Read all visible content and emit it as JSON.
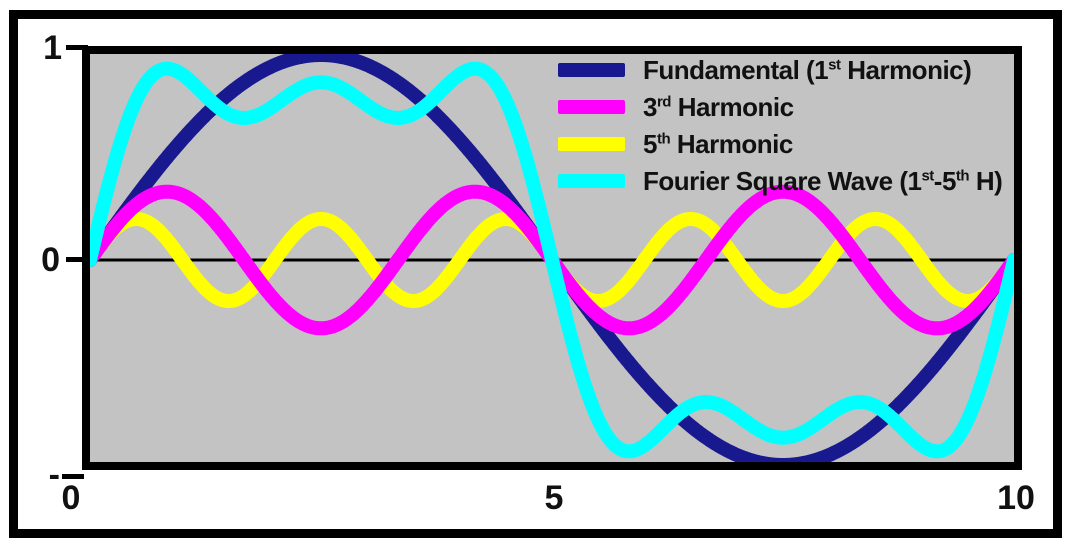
{
  "figure": {
    "background_color": "#ffffff",
    "plot_background_color": "#c3c3c3",
    "frame_color": "#000000",
    "zero_line_color": "#000000"
  },
  "axes": {
    "y_ticks": [
      {
        "label": "1",
        "value": 1
      },
      {
        "label": "0",
        "value": 0
      },
      {
        "label": "-",
        "value": -1
      }
    ],
    "x_ticks": [
      {
        "label": "0",
        "value": 0
      },
      {
        "label": "5",
        "value": 5
      },
      {
        "label": "10",
        "value": 10
      }
    ]
  },
  "legend": {
    "items": [
      {
        "id": "fundamental",
        "swatch_color": "#18188f",
        "parts": [
          {
            "t": "Fundamental (1"
          },
          {
            "t": "st",
            "sup": true
          },
          {
            "t": " Harmonic)"
          }
        ]
      },
      {
        "id": "harmonic-3",
        "swatch_color": "#ff00ff",
        "parts": [
          {
            "t": "3"
          },
          {
            "t": "rd",
            "sup": true
          },
          {
            "t": " Harmonic"
          }
        ]
      },
      {
        "id": "harmonic-5",
        "swatch_color": "#ffff00",
        "parts": [
          {
            "t": "5"
          },
          {
            "t": "th",
            "sup": true
          },
          {
            "t": " Harmonic"
          }
        ]
      },
      {
        "id": "square-wave-sum",
        "swatch_color": "#00ffff",
        "parts": [
          {
            "t": "Fourier Square Wave (1"
          },
          {
            "t": "st",
            "sup": true
          },
          {
            "t": "-5"
          },
          {
            "t": "th",
            "sup": true
          },
          {
            "t": " H)"
          }
        ]
      }
    ]
  },
  "chart_data": {
    "type": "line",
    "title": "",
    "xlabel": "",
    "ylabel": "",
    "x_range": [
      0,
      10
    ],
    "ylim": [
      -1,
      1
    ],
    "xtick_values": [
      0,
      5,
      10
    ],
    "xtick_labels": [
      "0",
      "5",
      "10"
    ],
    "ytick_values": [
      1,
      0,
      -1
    ],
    "ytick_labels": [
      "1",
      "0",
      "-"
    ],
    "grid": false,
    "zero_line": true,
    "legend_position": "top-right-inside",
    "period": 10,
    "model": "y(x) = sum over components of amplitude * sin(2*pi*harmonic*x/period)",
    "series": [
      {
        "id": "fundamental",
        "name": "Fundamental (1st Harmonic)",
        "color": "#18188f",
        "z": 2,
        "components": [
          {
            "harmonic": 1,
            "amplitude": 1.0
          }
        ]
      },
      {
        "id": "harmonic-3",
        "name": "3rd Harmonic",
        "color": "#ff00ff",
        "z": 3,
        "components": [
          {
            "harmonic": 3,
            "amplitude": 0.3333
          }
        ]
      },
      {
        "id": "harmonic-5",
        "name": "5th Harmonic",
        "color": "#ffff00",
        "z": 1,
        "components": [
          {
            "harmonic": 5,
            "amplitude": 0.2
          }
        ]
      },
      {
        "id": "square-wave-sum",
        "name": "Fourier Square Wave (1st-5th H)",
        "color": "#00ffff",
        "z": 4,
        "components": [
          {
            "harmonic": 1,
            "amplitude": 1.0
          },
          {
            "harmonic": 3,
            "amplitude": 0.3333
          },
          {
            "harmonic": 5,
            "amplitude": 0.2
          }
        ]
      }
    ]
  }
}
